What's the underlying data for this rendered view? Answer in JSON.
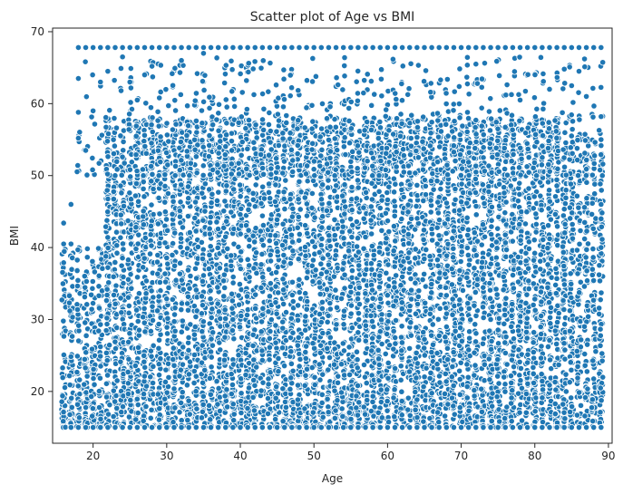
{
  "chart_data": {
    "type": "scatter",
    "title": "Scatter plot of Age vs BMI",
    "xlabel": "Age",
    "ylabel": "BMI",
    "xlim": [
      14.5,
      90.5
    ],
    "ylim": [
      12.8,
      70.5
    ],
    "xticks": [
      20,
      30,
      40,
      50,
      60,
      70,
      80,
      90
    ],
    "yticks": [
      20,
      30,
      40,
      50,
      60,
      70
    ],
    "grid": false,
    "legend": "none",
    "marker_color": "#1f77b4",
    "marker_edge_color": "#ffffff",
    "series": [
      {
        "x_range": [
          16,
          89
        ],
        "y_range": [
          15,
          67.8
        ],
        "cap_value": 67.8,
        "floor_value": 15,
        "dense_y_range": [
          15,
          40
        ],
        "description_points": [
          [
            16,
            43.4
          ],
          [
            16,
            40.5
          ],
          [
            17,
            46
          ],
          [
            17,
            40.5
          ],
          [
            18,
            67.8
          ],
          [
            18,
            63.5
          ],
          [
            18,
            58.8
          ],
          [
            18,
            55.2
          ],
          [
            19,
            53.5
          ],
          [
            20,
            67.8
          ],
          [
            20,
            59
          ],
          [
            21,
            63
          ],
          [
            22,
            64.5
          ],
          [
            23,
            67.8
          ],
          [
            24,
            66.5
          ],
          [
            25,
            63
          ],
          [
            26,
            60.5
          ],
          [
            27,
            64
          ],
          [
            28,
            65.2
          ],
          [
            29,
            60.8
          ],
          [
            30,
            67.8
          ],
          [
            32,
            66
          ],
          [
            35,
            67
          ],
          [
            40,
            67.8
          ],
          [
            45,
            67.8
          ],
          [
            50,
            67.8
          ],
          [
            55,
            67.8
          ],
          [
            60,
            67.8
          ],
          [
            65,
            67.8
          ],
          [
            70,
            67.8
          ],
          [
            72,
            65.5
          ],
          [
            75,
            67.8
          ],
          [
            78,
            60.5
          ],
          [
            80,
            67.8
          ],
          [
            82,
            62
          ],
          [
            84,
            64.8
          ],
          [
            85,
            62.5
          ],
          [
            86,
            64.5
          ],
          [
            87,
            61
          ],
          [
            88,
            67.8
          ],
          [
            89,
            58.2
          ],
          [
            89,
            55
          ],
          [
            89,
            46
          ],
          [
            89,
            44
          ],
          [
            89,
            40
          ],
          [
            89,
            15
          ]
        ]
      }
    ]
  }
}
